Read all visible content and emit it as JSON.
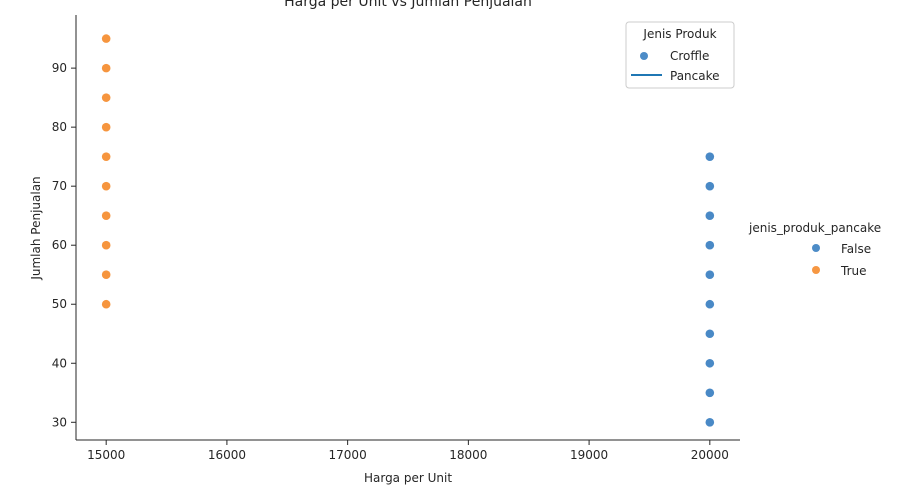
{
  "chart_data": {
    "type": "scatter",
    "title": "Harga per Unit vs Jumlah Penjualan",
    "xlabel": "Harga per Unit",
    "ylabel": "Jumlah Penjualan",
    "xlim": [
      14750,
      20250
    ],
    "ylim": [
      27,
      99
    ],
    "xticks": [
      15000,
      16000,
      17000,
      18000,
      19000,
      20000
    ],
    "yticks": [
      30,
      40,
      50,
      60,
      70,
      80,
      90
    ],
    "grid": false,
    "series": [
      {
        "name": "False",
        "color": "#3a7fc1",
        "points": [
          {
            "x": 20000,
            "y": 30
          },
          {
            "x": 20000,
            "y": 35
          },
          {
            "x": 20000,
            "y": 40
          },
          {
            "x": 20000,
            "y": 45
          },
          {
            "x": 20000,
            "y": 50
          },
          {
            "x": 20000,
            "y": 55
          },
          {
            "x": 20000,
            "y": 60
          },
          {
            "x": 20000,
            "y": 65
          },
          {
            "x": 20000,
            "y": 70
          },
          {
            "x": 20000,
            "y": 75
          }
        ]
      },
      {
        "name": "True",
        "color": "#f58c2e",
        "points": [
          {
            "x": 15000,
            "y": 50
          },
          {
            "x": 15000,
            "y": 55
          },
          {
            "x": 15000,
            "y": 60
          },
          {
            "x": 15000,
            "y": 65
          },
          {
            "x": 15000,
            "y": 70
          },
          {
            "x": 15000,
            "y": 75
          },
          {
            "x": 15000,
            "y": 80
          },
          {
            "x": 15000,
            "y": 85
          },
          {
            "x": 15000,
            "y": 90
          },
          {
            "x": 15000,
            "y": 95
          }
        ]
      }
    ],
    "inner_legend": {
      "title": "Jenis Produk",
      "placement": "top-right",
      "entries": [
        {
          "label": "Croffle",
          "kind": "marker",
          "color": "#3a7fc1"
        },
        {
          "label": "Pancake",
          "kind": "line",
          "color": "#1f77b4"
        }
      ]
    },
    "outer_legend": {
      "title": "jenis_produk_pancake",
      "placement": "right",
      "entries": [
        {
          "label": "False",
          "color": "#3a7fc1"
        },
        {
          "label": "True",
          "color": "#f58c2e"
        }
      ]
    }
  }
}
